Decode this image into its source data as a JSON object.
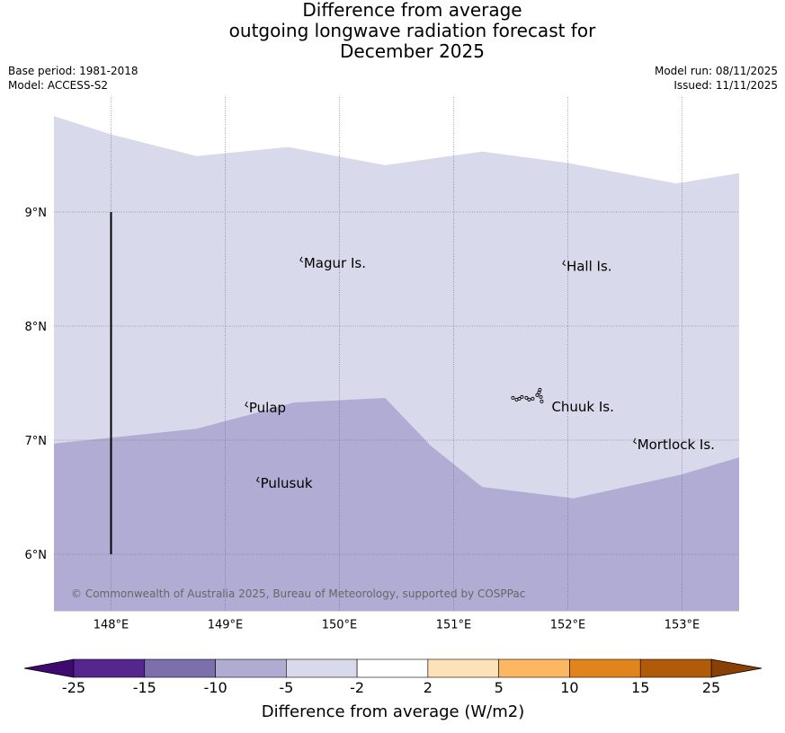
{
  "title": {
    "line1": "Difference from average",
    "line2": "outgoing longwave radiation forecast for",
    "line3": "December 2025"
  },
  "meta": {
    "base_period": "Base period: 1981-2018",
    "model": "Model: ACCESS-S2",
    "model_run": "Model run: 08/11/2025",
    "issued": "Issued: 11/11/2025"
  },
  "copyright": "© Commonwealth of Australia 2025, Bureau of Meteorology, supported by COSPPac",
  "colors": {
    "class_minus5_to_minus2": "#d8d9ea",
    "class_minus10_to_minus5": "#b1acd3",
    "gridline": "#666677",
    "coastline": "#000000"
  },
  "map": {
    "lon_range": [
      147.5,
      153.5
    ],
    "lat_range": [
      5.5,
      10.0
    ],
    "lon_ticks": [
      {
        "value": 148,
        "label": "148°E"
      },
      {
        "value": 149,
        "label": "149°E"
      },
      {
        "value": 150,
        "label": "150°E"
      },
      {
        "value": 151,
        "label": "151°E"
      },
      {
        "value": 152,
        "label": "152°E"
      },
      {
        "value": 153,
        "label": "153°E"
      }
    ],
    "lat_ticks": [
      {
        "value": 9,
        "label": "9°N"
      },
      {
        "value": 8,
        "label": "8°N"
      },
      {
        "value": 7,
        "label": "7°N"
      },
      {
        "value": 6,
        "label": "6°N"
      }
    ],
    "top_boundary_lonlat": [
      [
        147.5,
        9.84
      ],
      [
        148.0,
        9.68
      ],
      [
        148.75,
        9.49
      ],
      [
        149.55,
        9.57
      ],
      [
        150.4,
        9.41
      ],
      [
        151.25,
        9.53
      ],
      [
        152.0,
        9.43
      ],
      [
        152.95,
        9.25
      ],
      [
        153.5,
        9.34
      ]
    ],
    "purple_boundary_lonlat": [
      [
        147.5,
        6.97
      ],
      [
        148.75,
        7.1
      ],
      [
        149.2,
        7.22
      ],
      [
        149.6,
        7.33
      ],
      [
        150.4,
        7.37
      ],
      [
        150.8,
        6.95
      ],
      [
        151.25,
        6.59
      ],
      [
        152.05,
        6.49
      ],
      [
        153.0,
        6.7
      ],
      [
        153.5,
        6.85
      ]
    ],
    "map_bottom_lat": 5.5,
    "dateline_segment": {
      "lon": 148.0,
      "lat_from": 9.0,
      "lat_to": 6.0
    },
    "places": [
      {
        "name": "Magur Is.",
        "lon": 149.68,
        "lat": 8.56
      },
      {
        "name": "Hall Is.",
        "lon": 151.98,
        "lat": 8.53
      },
      {
        "name": "Pulap",
        "lon": 149.2,
        "lat": 7.29
      },
      {
        "name": "Chuuk Is.",
        "lon": 151.85,
        "lat": 7.3
      },
      {
        "name": "Mortlock Is.",
        "lon": 152.6,
        "lat": 6.97
      },
      {
        "name": "Pulusuk",
        "lon": 149.3,
        "lat": 6.63
      }
    ]
  },
  "colorbar": {
    "label": "Difference from average (W/m2)",
    "ticks": [
      "-25",
      "-15",
      "-10",
      "-5",
      "-2",
      "2",
      "5",
      "10",
      "15",
      "25"
    ],
    "low_extend_color": "#3f0a6f",
    "high_extend_color": "#8a3f05",
    "bins": [
      "#54268e",
      "#7c6fac",
      "#b0abd3",
      "#d8d9ea",
      "#ffffff",
      "#fde1b9",
      "#fdb661",
      "#e1841c",
      "#b15a0a"
    ]
  }
}
